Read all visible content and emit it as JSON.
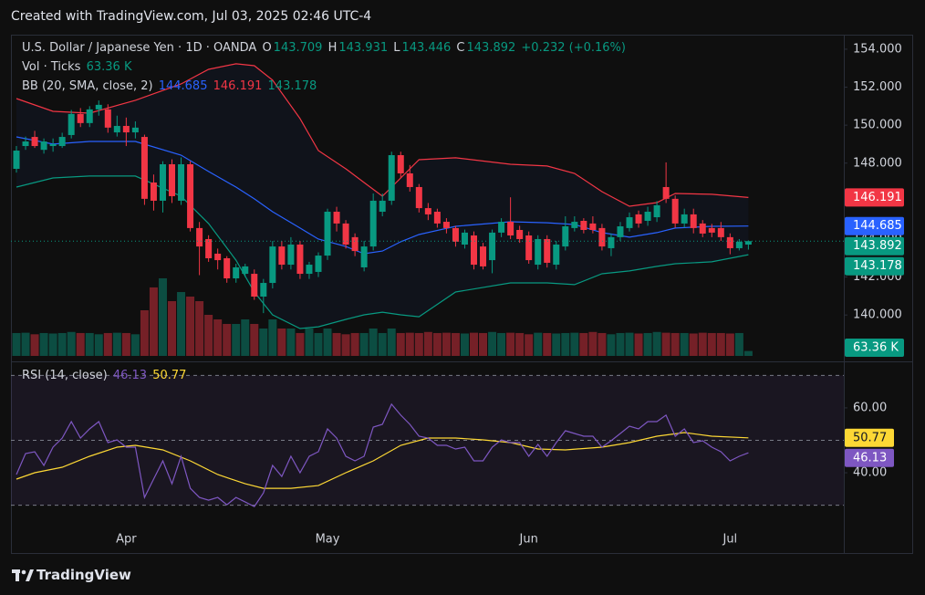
{
  "header": {
    "text": "Created with TradingView.com, Jul 03, 2025 02:46 UTC-4"
  },
  "footer": {
    "brand": "TradingView"
  },
  "chart_data": [
    {
      "type": "candlestick",
      "title": "U.S. Dollar / Japanese Yen · 1D · OANDA",
      "ohlc_prefixes": [
        "O",
        "H",
        "L",
        "C"
      ],
      "change_label": "+0.232 (+0.16%)",
      "up_color": "#089981",
      "down_color": "#f23645",
      "open": [
        147.7,
        148.9,
        149.38,
        148.7,
        148.9,
        148.9,
        149.48,
        150.59,
        150.11,
        150.83,
        150.83,
        149.62,
        149.96,
        149.62,
        149.38,
        146.98,
        146.02,
        147.94,
        146.02,
        147.94,
        144.58,
        144.0,
        143.23,
        142.99,
        141.93,
        142.17,
        142.17,
        140.97,
        141.69,
        143.61,
        142.65,
        143.71,
        142.17,
        142.27,
        143.13,
        145.44,
        144.82,
        144.1,
        142.51,
        143.61,
        145.44,
        146.02,
        148.42,
        147.46,
        146.74,
        145.63,
        145.44,
        144.91,
        144.58,
        143.71,
        144.19,
        143.61,
        142.89,
        144.34,
        144.91,
        144.48,
        144.19,
        142.65,
        144.0,
        142.65,
        143.61,
        144.58,
        144.96,
        144.82,
        144.58,
        143.52,
        144.1,
        144.58,
        145.3,
        144.96,
        145.15,
        146.74,
        146.12,
        144.82,
        145.3,
        144.82,
        144.58,
        144.58,
        144.1,
        143.52,
        143.709
      ],
      "high": [
        148.9,
        149.4,
        149.7,
        149.3,
        149.3,
        149.6,
        150.8,
        150.9,
        151.0,
        151.3,
        151.1,
        150.5,
        150.4,
        150.2,
        149.5,
        147.4,
        148.1,
        148.2,
        148.3,
        148.1,
        144.9,
        144.2,
        143.5,
        143.1,
        142.7,
        142.7,
        142.4,
        141.9,
        143.9,
        143.9,
        144.1,
        143.9,
        142.8,
        143.3,
        145.6,
        145.7,
        145.0,
        144.3,
        143.9,
        146.4,
        146.4,
        148.6,
        148.6,
        147.9,
        146.9,
        145.9,
        145.6,
        145.1,
        144.7,
        144.5,
        144.4,
        143.8,
        144.5,
        145.1,
        146.2,
        144.7,
        144.4,
        144.2,
        144.2,
        143.9,
        145.2,
        145.2,
        145.1,
        145.2,
        144.8,
        144.3,
        144.9,
        145.4,
        145.5,
        145.7,
        146.0,
        148.04,
        146.3,
        145.6,
        145.6,
        145.0,
        144.8,
        144.9,
        144.3,
        144.0,
        143.931
      ],
      "low": [
        147.5,
        148.7,
        148.8,
        148.5,
        148.6,
        148.8,
        149.3,
        149.9,
        149.9,
        150.5,
        149.6,
        149.4,
        148.9,
        149.3,
        145.8,
        145.5,
        145.4,
        145.9,
        145.8,
        144.4,
        142.1,
        142.8,
        142.4,
        141.7,
        141.7,
        142.0,
        140.8,
        140.1,
        141.4,
        142.4,
        142.4,
        141.9,
        141.9,
        142.0,
        142.9,
        144.4,
        143.5,
        143.1,
        142.3,
        143.4,
        145.2,
        145.8,
        147.2,
        146.5,
        145.4,
        145.0,
        144.6,
        144.3,
        143.6,
        143.5,
        142.4,
        142.4,
        142.2,
        144.1,
        144.0,
        143.8,
        142.7,
        142.4,
        142.5,
        142.4,
        143.4,
        144.4,
        144.3,
        144.3,
        143.4,
        143.1,
        143.9,
        144.4,
        144.6,
        144.7,
        144.9,
        145.9,
        144.6,
        144.6,
        144.3,
        144.1,
        144.1,
        143.9,
        143.2,
        143.4,
        143.446
      ],
      "close": [
        148.66,
        149.14,
        148.9,
        149.14,
        149.0,
        149.38,
        150.59,
        150.11,
        150.83,
        151.07,
        149.87,
        149.96,
        149.62,
        149.87,
        146.12,
        146.02,
        147.94,
        146.26,
        147.94,
        144.58,
        143.61,
        142.99,
        142.89,
        141.93,
        142.51,
        142.56,
        140.97,
        141.69,
        143.61,
        142.65,
        143.71,
        142.17,
        142.65,
        143.13,
        145.44,
        144.82,
        143.71,
        143.37,
        143.61,
        146.02,
        146.02,
        148.42,
        147.46,
        146.74,
        145.63,
        145.3,
        144.82,
        144.58,
        143.86,
        144.34,
        142.65,
        142.56,
        144.34,
        144.91,
        144.19,
        144.0,
        142.89,
        144.0,
        142.75,
        143.71,
        144.67,
        144.91,
        144.48,
        144.48,
        143.61,
        144.1,
        144.67,
        145.15,
        144.82,
        145.44,
        145.78,
        146.12,
        144.82,
        145.3,
        144.58,
        144.29,
        144.34,
        144.1,
        143.52,
        143.86,
        143.892
      ],
      "ylim": [
        137.75,
        155.15
      ],
      "yticks": [
        {
          "value": 140,
          "label": "140.000"
        },
        {
          "value": 142,
          "label": "142.000"
        },
        {
          "value": 144,
          "label": "144.000"
        },
        {
          "value": 146,
          "label": "146.000"
        },
        {
          "value": 148,
          "label": "148.000"
        },
        {
          "value": 150,
          "label": "150.000"
        },
        {
          "value": 152,
          "label": "152.000"
        },
        {
          "value": 154,
          "label": "154.000"
        }
      ],
      "xticks": [
        {
          "value": 12,
          "label": "Apr"
        },
        {
          "value": 34,
          "label": "May"
        },
        {
          "value": 56,
          "label": "Jun"
        },
        {
          "value": 78,
          "label": "Jul"
        }
      ],
      "price_line": true,
      "volume": {
        "title": "Vol · Ticks",
        "values": [
          296,
          300,
          280,
          296,
          290,
          296,
          310,
          296,
          296,
          280,
          296,
          300,
          296,
          280,
          591,
          887,
          1005,
          709,
          827,
          768,
          709,
          532,
          473,
          414,
          414,
          473,
          414,
          355,
          473,
          355,
          355,
          296,
          355,
          296,
          355,
          296,
          280,
          296,
          296,
          355,
          296,
          355,
          296,
          300,
          296,
          310,
          296,
          300,
          296,
          290,
          300,
          296,
          310,
          296,
          300,
          296,
          280,
          300,
          296,
          290,
          296,
          300,
          296,
          310,
          296,
          280,
          296,
          300,
          290,
          296,
          310,
          300,
          296,
          296,
          290,
          300,
          296,
          296,
          290,
          296,
          63.36
        ],
        "value_labels": [
          null,
          null,
          null,
          null,
          null,
          null,
          null,
          null,
          null,
          null,
          null,
          null,
          null,
          null,
          null,
          null,
          null,
          null,
          null,
          null,
          null,
          null,
          null,
          null,
          null,
          null,
          null,
          null,
          null,
          null,
          null,
          null,
          null,
          null,
          null,
          null,
          null,
          null,
          null,
          null,
          null,
          null,
          null,
          null,
          null,
          null,
          null,
          null,
          null,
          null,
          null,
          null,
          null,
          null,
          null,
          null,
          null,
          null,
          null,
          null,
          null,
          null,
          null,
          null,
          null,
          null,
          null,
          null,
          null,
          null,
          null,
          null,
          null,
          null,
          null,
          null,
          null,
          null,
          null,
          null,
          "63.36 K"
        ],
        "ylim": [
          0,
          1300
        ]
      },
      "bb": {
        "title": "BB (20, SMA, close, 2)",
        "x": [
          0,
          4,
          8,
          13,
          18,
          21,
          24,
          26,
          28,
          31,
          33,
          36,
          38,
          40,
          42,
          44,
          48,
          54,
          58,
          61,
          64,
          67,
          70,
          72,
          76,
          80
        ],
        "basis": [
          149.38,
          149.0,
          149.14,
          149.14,
          148.42,
          147.56,
          146.74,
          146.12,
          145.44,
          144.58,
          144.0,
          143.61,
          143.23,
          143.37,
          143.86,
          144.24,
          144.67,
          144.91,
          144.86,
          144.77,
          144.34,
          144.1,
          144.34,
          144.58,
          144.67,
          144.685
        ],
        "upper": [
          151.4,
          150.73,
          150.63,
          151.31,
          152.17,
          152.94,
          153.23,
          153.13,
          152.37,
          150.35,
          148.66,
          147.7,
          146.98,
          146.26,
          147.22,
          148.18,
          148.28,
          147.94,
          147.85,
          147.46,
          146.5,
          145.73,
          145.92,
          146.4,
          146.36,
          146.191
        ],
        "lower": [
          146.74,
          147.22,
          147.32,
          147.32,
          146.26,
          144.82,
          142.89,
          141.21,
          140.01,
          139.29,
          139.38,
          139.77,
          140.01,
          140.15,
          140.01,
          139.91,
          141.21,
          141.69,
          141.69,
          141.6,
          142.17,
          142.32,
          142.56,
          142.7,
          142.8,
          143.178
        ],
        "colors": {
          "basis": "#2962ff",
          "upper": "#f23645",
          "lower": "#089981"
        }
      }
    },
    {
      "type": "line",
      "title": "RSI (14, close)",
      "color": "#7e57c2",
      "values": [
        39.44,
        45.92,
        46.48,
        42.25,
        47.89,
        50.7,
        55.77,
        50.7,
        53.52,
        55.77,
        49.3,
        50.14,
        47.89,
        47.89,
        32.39,
        38.03,
        43.66,
        36.62,
        45.07,
        35.21,
        32.39,
        31.55,
        32.39,
        30.14,
        32.39,
        30.99,
        29.58,
        33.8,
        42.25,
        38.87,
        45.07,
        40.0,
        45.07,
        46.48,
        53.52,
        50.7,
        45.07,
        43.66,
        45.07,
        54.08,
        54.93,
        61.13,
        57.75,
        54.93,
        51.27,
        50.7,
        48.45,
        48.45,
        47.32,
        47.89,
        43.66,
        43.66,
        47.89,
        50.14,
        49.3,
        49.3,
        45.07,
        48.73,
        45.07,
        49.3,
        52.96,
        52.11,
        51.27,
        51.27,
        47.89,
        49.86,
        52.11,
        54.37,
        53.52,
        55.77,
        55.77,
        57.75,
        51.27,
        53.52,
        49.3,
        49.86,
        47.89,
        46.48,
        43.66,
        45.07,
        46.13
      ],
      "ma": {
        "color": "#fdd835",
        "x": [
          0,
          2,
          5,
          8,
          11,
          13,
          16,
          19,
          22,
          25,
          27,
          30,
          33,
          36,
          39,
          42,
          45,
          48,
          51,
          54,
          57,
          60,
          64,
          67,
          70,
          73,
          76,
          80
        ],
        "values": [
          38.03,
          40.0,
          41.69,
          45.07,
          47.89,
          48.45,
          47.04,
          43.66,
          39.44,
          36.62,
          35.21,
          35.21,
          36.06,
          40.0,
          43.66,
          48.45,
          50.7,
          50.7,
          50.14,
          49.3,
          47.32,
          47.04,
          47.89,
          49.3,
          51.27,
          52.39,
          51.27,
          50.77
        ]
      },
      "ylim": [
        19.2,
        73.2
      ],
      "yticks": [
        {
          "value": 40,
          "label": "40.00"
        },
        {
          "value": 60,
          "label": "60.00"
        }
      ],
      "bands": [
        70,
        50,
        30
      ]
    }
  ]
}
